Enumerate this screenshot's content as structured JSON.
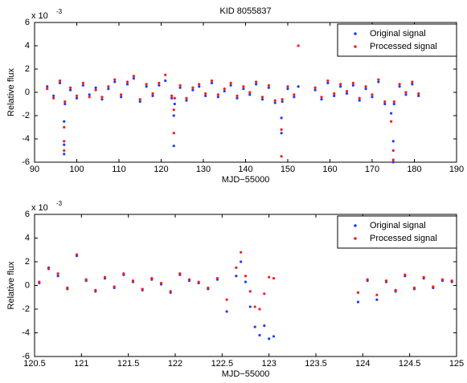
{
  "chart_data": [
    {
      "type": "scatter",
      "title": "KID 8055837",
      "xlabel": "MJD−55000",
      "ylabel": "Relative flux",
      "y_scale_label": "x 10",
      "y_scale_exponent": "-3",
      "legend": "upper right",
      "xlim": [
        90,
        190
      ],
      "xticks": [
        90,
        100,
        110,
        120,
        130,
        140,
        150,
        160,
        170,
        180,
        190
      ],
      "ylim": [
        -6,
        6
      ],
      "yticks": [
        -6,
        -4,
        -2,
        0,
        2,
        4,
        6
      ],
      "series": [
        {
          "name": "Original signal",
          "color": "#1f3cff",
          "x": [
            93,
            94.5,
            96,
            97,
            97,
            97,
            97.2,
            98.5,
            100,
            101.5,
            103,
            104.5,
            106,
            107.5,
            109,
            110.5,
            112,
            113.5,
            115,
            116.5,
            118,
            119.5,
            121,
            122.5,
            123,
            123,
            123.2,
            124.5,
            126,
            127.5,
            129,
            130.5,
            132,
            133.5,
            135,
            136.5,
            138,
            139.5,
            141,
            142.5,
            144,
            145.5,
            147,
            148.5,
            148.5,
            148.7,
            150,
            151.5,
            152.5,
            156.5,
            158,
            159.5,
            161,
            162.5,
            164,
            165.5,
            167,
            168.5,
            170,
            171.5,
            173,
            174.5,
            175,
            175,
            175.2,
            176.5,
            178,
            179.5,
            181
          ],
          "values": [
            0.5,
            -0.3,
            0.8,
            -2.5,
            -4.5,
            -5.3,
            -1,
            0.2,
            -0.5,
            0.6,
            -0.2,
            0.4,
            -0.6,
            0.3,
            0.9,
            -0.4,
            0.7,
            1.2,
            -0.8,
            0.5,
            -0.3,
            0.6,
            1,
            -0.5,
            -2,
            -4.6,
            -1,
            0.4,
            -0.7,
            0.2,
            0.5,
            -0.3,
            0.8,
            -0.4,
            0.1,
            0.6,
            -0.5,
            0.3,
            -0.2,
            0.7,
            -0.6,
            0.4,
            -0.9,
            -2.2,
            -3.5,
            -0.8,
            0.3,
            -0.4,
            0.5,
            0.2,
            -0.6,
            0.8,
            -0.3,
            0.5,
            -0.1,
            0.6,
            -0.7,
            0.3,
            -0.4,
            0.9,
            -1,
            -1.8,
            -4.2,
            -6,
            -1,
            0.5,
            -0.2,
            0.7,
            -0.3
          ]
        },
        {
          "name": "Processed signal",
          "color": "#ff1a1a",
          "x": [
            93,
            94.5,
            96,
            97,
            97,
            97,
            97.2,
            98.5,
            100,
            101.5,
            103,
            104.5,
            106,
            107.5,
            109,
            110.5,
            112,
            113.5,
            115,
            116.5,
            118,
            119.5,
            121,
            122.5,
            123,
            123,
            123.2,
            124.5,
            126,
            127.5,
            129,
            130.5,
            132,
            133.5,
            135,
            136.5,
            138,
            139.5,
            141,
            142.5,
            144,
            145.5,
            147,
            148.5,
            148.5,
            148.7,
            150,
            151.5,
            152.5,
            156.5,
            158,
            159.5,
            161,
            162.5,
            164,
            165.5,
            167,
            168.5,
            170,
            171.5,
            173,
            174.5,
            175,
            175,
            175.2,
            176.5,
            178,
            179.5,
            181
          ],
          "values": [
            0.3,
            -0.5,
            1,
            -3,
            -4.2,
            -5,
            -0.8,
            0.4,
            -0.3,
            0.8,
            -0.4,
            0.2,
            -0.4,
            0.5,
            1.1,
            -0.2,
            0.9,
            1.4,
            -0.6,
            0.7,
            -0.1,
            0.8,
            1.5,
            -0.3,
            -1.5,
            -3.5,
            -0.5,
            0.6,
            -0.5,
            0.4,
            0.7,
            -0.1,
            1,
            -0.2,
            0.3,
            0.8,
            -0.3,
            0.5,
            0,
            0.9,
            -0.4,
            0.6,
            -0.7,
            -3.2,
            -5.5,
            -0.6,
            0.5,
            -0.2,
            4,
            0.4,
            -0.4,
            1,
            -0.1,
            0.7,
            0.1,
            0.8,
            -0.5,
            0.5,
            -0.2,
            1.1,
            -0.8,
            -2.5,
            -5,
            -5.8,
            -0.8,
            0.7,
            0,
            0.9,
            -0.1
          ]
        }
      ]
    },
    {
      "type": "scatter",
      "xlabel": "MJD−55000",
      "ylabel": "Relative flux",
      "y_scale_label": "x 10",
      "y_scale_exponent": "-3",
      "legend": "upper right",
      "xlim": [
        120.5,
        125
      ],
      "xticks": [
        120.5,
        121,
        121.5,
        122,
        122.5,
        123,
        123.5,
        124,
        124.5,
        125
      ],
      "ylim": [
        -6,
        6
      ],
      "yticks": [
        -6,
        -4,
        -2,
        0,
        2,
        4,
        6
      ],
      "series": [
        {
          "name": "Original signal",
          "color": "#1f3cff",
          "x": [
            120.55,
            120.65,
            120.75,
            120.85,
            120.95,
            121.05,
            121.15,
            121.25,
            121.35,
            121.45,
            121.55,
            121.65,
            121.75,
            121.85,
            121.95,
            122.05,
            122.15,
            122.25,
            122.35,
            122.45,
            122.55,
            122.65,
            122.7,
            122.75,
            122.8,
            122.85,
            122.9,
            122.95,
            123.0,
            123.05,
            123.95,
            124.05,
            124.15,
            124.25,
            124.35,
            124.45,
            124.55,
            124.65,
            124.75,
            124.85,
            124.95
          ],
          "values": [
            0.2,
            1.5,
            0.8,
            -0.3,
            2.5,
            0.4,
            -0.5,
            0.6,
            -0.2,
            0.9,
            0.3,
            -0.4,
            0.5,
            0.1,
            -0.6,
            0.9,
            0.4,
            0.2,
            -0.3,
            0.5,
            -2.2,
            0.8,
            2,
            0.3,
            -1.8,
            -3.5,
            -4.2,
            -3.4,
            -4.5,
            -4.3,
            -1.4,
            0.4,
            -1.2,
            0.3,
            -0.5,
            0.8,
            -0.3,
            0.6,
            -0.2,
            0.4,
            0.3
          ]
        },
        {
          "name": "Processed signal",
          "color": "#ff1a1a",
          "x": [
            120.55,
            120.65,
            120.75,
            120.85,
            120.95,
            121.05,
            121.15,
            121.25,
            121.35,
            121.45,
            121.55,
            121.65,
            121.75,
            121.85,
            121.95,
            122.05,
            122.15,
            122.25,
            122.35,
            122.45,
            122.55,
            122.65,
            122.7,
            122.75,
            122.8,
            122.85,
            122.9,
            122.95,
            123.0,
            123.05,
            123.95,
            124.05,
            124.15,
            124.25,
            124.35,
            124.45,
            124.55,
            124.65,
            124.75,
            124.85,
            124.95
          ],
          "values": [
            0.3,
            1.4,
            1,
            -0.2,
            2.6,
            0.5,
            -0.4,
            0.7,
            -0.1,
            1,
            0.4,
            -0.3,
            0.6,
            0.2,
            -0.5,
            1,
            0.5,
            0.3,
            -0.2,
            0.6,
            -1.2,
            1.5,
            2.8,
            0.8,
            -0.5,
            -1.8,
            -2,
            -0.7,
            0.7,
            0.6,
            -0.6,
            0.5,
            -0.8,
            0.4,
            -0.4,
            0.9,
            -0.2,
            0.7,
            -0.1,
            0.5,
            0.4
          ]
        }
      ]
    }
  ]
}
